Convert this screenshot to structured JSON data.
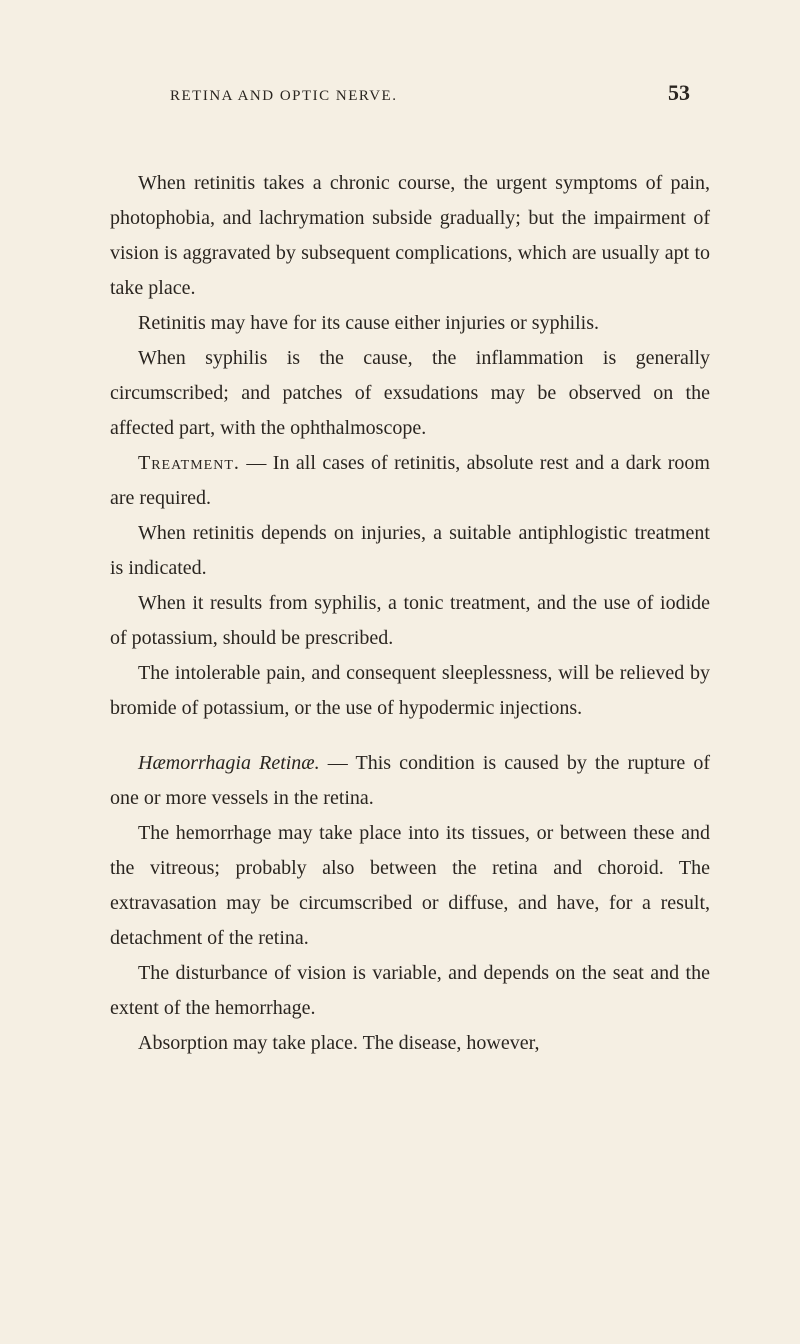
{
  "header": {
    "title": "RETINA AND OPTIC NERVE.",
    "page_number": "53"
  },
  "paragraphs": {
    "p1": "When retinitis takes a chronic course, the urgent symptoms of pain, photophobia, and lachrymation subside gradually; but the impairment of vision is aggravated by subsequent complications, which are usually apt to take place.",
    "p2": "Retinitis may have for its cause either injuries or syphilis.",
    "p3": "When syphilis is the cause, the inflammation is generally circumscribed; and patches of exsudations may be observed on the affected part, with the ophthalmoscope.",
    "p4_label": "Treatment.",
    "p4": " — In all cases of retinitis, absolute rest and a dark room are required.",
    "p5": "When retinitis depends on injuries, a suitable antiphlogistic treatment is indicated.",
    "p6": "When it results from syphilis, a tonic treatment, and the use of iodide of potassium, should be prescribed.",
    "p7": "The intolerable pain, and consequent sleeplessness, will be relieved by bromide of potassium, or the use of hypodermic injections.",
    "p8_label": "Hæmorrhagia Retinæ.",
    "p8": " — This condition is caused by the rupture of one or more vessels in the retina.",
    "p9": "The hemorrhage may take place into its tissues, or between these and the vitreous; probably also between the retina and choroid. The extravasation may be circumscribed or diffuse, and have, for a result, detachment of the retina.",
    "p10": "The disturbance of vision is variable, and depends on the seat and the extent of the hemorrhage.",
    "p11": "Absorption may take place. The disease, however,"
  },
  "colors": {
    "background": "#f5efe3",
    "text": "#2a2520"
  },
  "typography": {
    "body_fontsize": 20,
    "header_fontsize": 15,
    "pagenum_fontsize": 22,
    "line_height": 1.75,
    "font_family": "Georgia, Times New Roman, serif"
  }
}
